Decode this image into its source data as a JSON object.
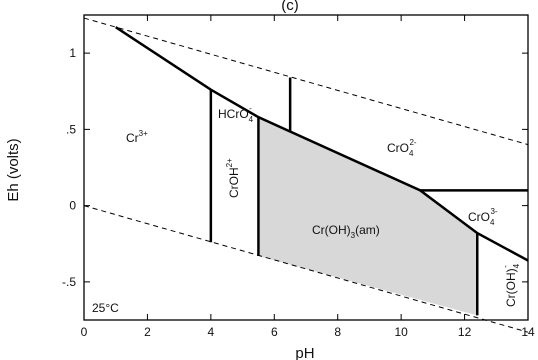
{
  "figure": {
    "panel_label": "(c)",
    "temperature_label": "25°C",
    "x_axis": {
      "label": "pH",
      "ticks": [
        "0",
        "2",
        "4",
        "6",
        "8",
        "10",
        "12",
        "14"
      ]
    },
    "y_axis": {
      "label": "Eh (volts)",
      "ticks": [
        "1",
        ".5",
        "0",
        "-.5"
      ]
    },
    "regions": {
      "cr3": {
        "main": "Cr",
        "sup": "3+"
      },
      "hcro4": {
        "main": "HCrO",
        "sub": "4",
        "sup": "-"
      },
      "croh": {
        "main": "CrOH",
        "sup": "2+"
      },
      "cro4_2": {
        "main": "CrO",
        "sub": "4",
        "sup": "2-"
      },
      "croh3": {
        "main": "Cr(OH)",
        "sub": "3",
        "tail": "(am)"
      },
      "cro3": {
        "main": "CrO",
        "sub": "4",
        "sup": "3-"
      },
      "croh4": {
        "main": "Cr(OH)",
        "sub": "4",
        "sup": "-"
      }
    },
    "colors": {
      "shaded_region": "#d8d8d8",
      "line": "#000000"
    }
  },
  "chart_data": {
    "type": "diagram",
    "xlim": [
      0,
      14
    ],
    "ylim": [
      -0.75,
      1.25
    ],
    "water_stability_upper": [
      [
        0,
        1.23
      ],
      [
        14,
        0.4
      ]
    ],
    "water_stability_lower": [
      [
        0,
        0.0
      ],
      [
        14,
        -0.83
      ]
    ],
    "boundaries": [
      [
        [
          1.0,
          1.17
        ],
        [
          4.0,
          0.76
        ],
        [
          5.5,
          0.58
        ],
        [
          10.6,
          0.1
        ],
        [
          12.4,
          -0.18
        ],
        [
          14,
          -0.36
        ]
      ],
      [
        [
          4.0,
          0.76
        ],
        [
          4.0,
          -0.24
        ]
      ],
      [
        [
          5.5,
          0.58
        ],
        [
          5.5,
          -0.33
        ]
      ],
      [
        [
          6.5,
          0.84
        ],
        [
          6.5,
          0.49
        ]
      ],
      [
        [
          10.6,
          0.1
        ],
        [
          14,
          0.1
        ]
      ],
      [
        [
          12.4,
          -0.18
        ],
        [
          12.4,
          -0.72
        ]
      ]
    ],
    "shaded_polygon": [
      [
        5.5,
        0.58
      ],
      [
        10.6,
        0.1
      ],
      [
        12.4,
        -0.18
      ],
      [
        12.4,
        -0.72
      ],
      [
        5.5,
        -0.33
      ]
    ]
  }
}
